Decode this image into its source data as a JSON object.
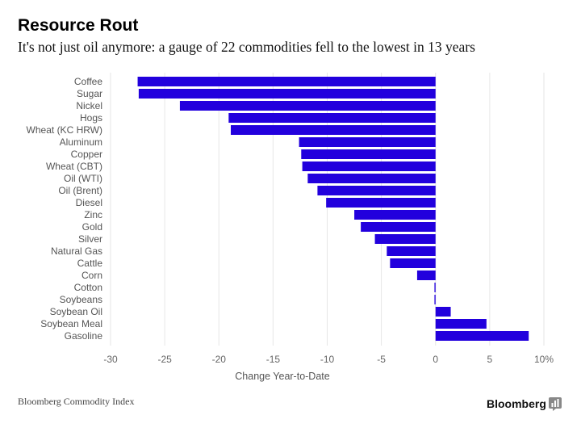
{
  "header": {
    "title": "Resource Rout",
    "subtitle": "It's not just oil anymore: a gauge of 22 commodities fell to the lowest in 13 years"
  },
  "footer": {
    "source": "Bloomberg Commodity Index",
    "brand": "Bloomberg"
  },
  "colors": {
    "bar": "#2200dd",
    "grid": "#e6e6e6",
    "tick_text": "#666666",
    "label_text": "#555555"
  },
  "chart_data": {
    "type": "bar",
    "orientation": "horizontal",
    "title": "Resource Rout",
    "xlabel": "Change Year-to-Date",
    "ylabel": "",
    "xlim": [
      -30,
      10
    ],
    "xticks": [
      -30,
      -25,
      -20,
      -15,
      -10,
      -5,
      0,
      5,
      10
    ],
    "xtick_labels": [
      "-30",
      "-25",
      "-20",
      "-15",
      "-10",
      "-5",
      "0",
      "5",
      "10%"
    ],
    "grid": true,
    "categories": [
      "Coffee",
      "Sugar",
      "Nickel",
      "Hogs",
      "Wheat (KC HRW)",
      "Aluminum",
      "Copper",
      "Wheat (CBT)",
      "Oil (WTI)",
      "Oil (Brent)",
      "Diesel",
      "Zinc",
      "Gold",
      "Silver",
      "Natural Gas",
      "Cattle",
      "Corn",
      "Cotton",
      "Soybeans",
      "Soybean Oil",
      "Soybean Meal",
      "Gasoline"
    ],
    "values": [
      -27.5,
      -27.4,
      -23.6,
      -19.1,
      -18.9,
      -12.6,
      -12.4,
      -12.3,
      -11.8,
      -10.9,
      -10.1,
      -7.5,
      -6.9,
      -5.6,
      -4.5,
      -4.2,
      -1.7,
      -0.1,
      -0.1,
      1.4,
      4.7,
      8.6
    ]
  }
}
